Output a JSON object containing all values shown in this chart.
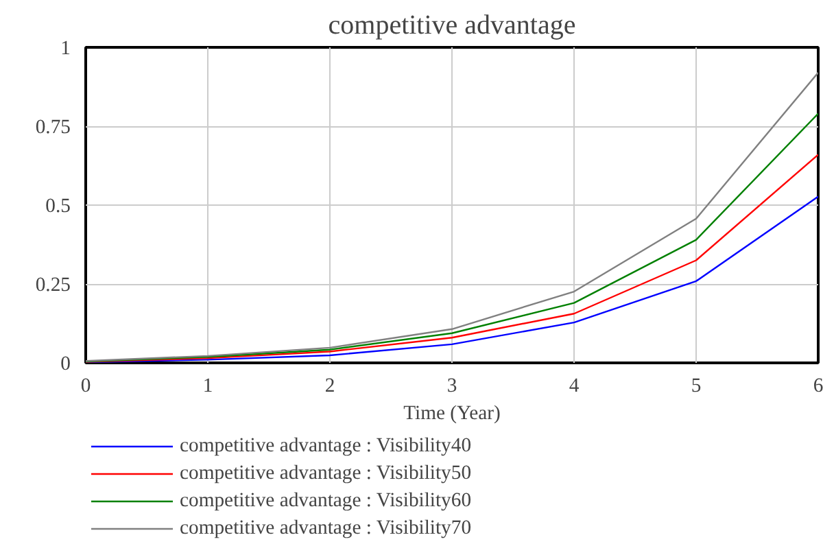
{
  "chart_data": {
    "type": "line",
    "title": "competitive advantage",
    "xlabel": "Time (Year)",
    "x": [
      0,
      1,
      2,
      3,
      4,
      5,
      6
    ],
    "xlim": [
      0,
      6
    ],
    "xticks": [
      0,
      1,
      2,
      3,
      4,
      5,
      6
    ],
    "ylim": [
      0,
      1
    ],
    "yticks": [
      0,
      0.25,
      0.5,
      0.75,
      1
    ],
    "grid": true,
    "legend": "bottom",
    "marker": "none",
    "line_style": "solid",
    "series": [
      {
        "name": "competitive advantage : Visibility40",
        "color": "#0000ff",
        "values": [
          0.002,
          0.01,
          0.024,
          0.059,
          0.128,
          0.259,
          0.527
        ]
      },
      {
        "name": "competitive advantage : Visibility50",
        "color": "#ff0000",
        "values": [
          0.003,
          0.015,
          0.036,
          0.08,
          0.156,
          0.325,
          0.66
        ]
      },
      {
        "name": "competitive advantage : Visibility60",
        "color": "#008000",
        "values": [
          0.004,
          0.019,
          0.042,
          0.094,
          0.19,
          0.39,
          0.79
        ]
      },
      {
        "name": "competitive advantage : Visibility70",
        "color": "#808080",
        "values": [
          0.006,
          0.022,
          0.048,
          0.107,
          0.226,
          0.457,
          0.92
        ]
      }
    ]
  }
}
